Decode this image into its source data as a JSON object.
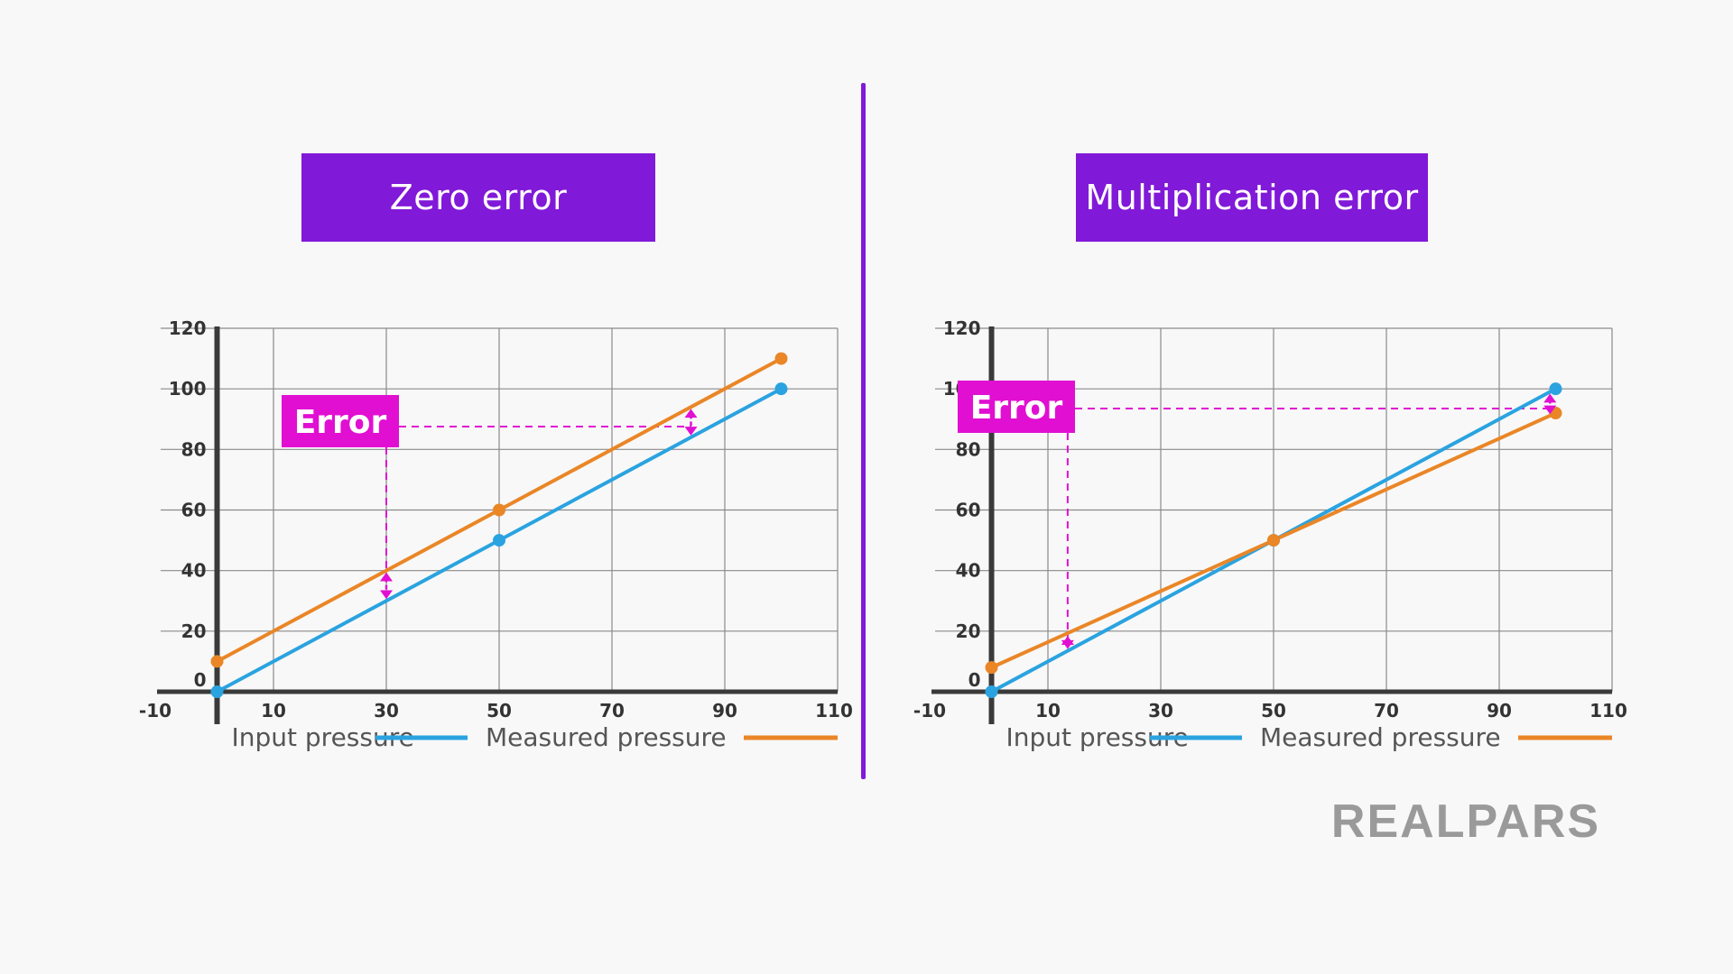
{
  "titles": {
    "left": "Zero error",
    "right": "Multiplication error"
  },
  "logo": {
    "text": "REALPARS",
    "color": "#9a9a9a"
  },
  "colors": {
    "accent": "#8119d8",
    "error_label": "#e10fd2",
    "input_line": "#2aa3e0",
    "measured_line": "#ea8626",
    "grid": "#8a8a8a",
    "axis": "#3a3a3a"
  },
  "chart_data": [
    {
      "type": "line",
      "title": "Zero error",
      "xlabel": "",
      "ylabel": "",
      "xlim": [
        -10,
        110
      ],
      "ylim": [
        0,
        120
      ],
      "x_ticks": [
        -10,
        10,
        30,
        50,
        70,
        90,
        110
      ],
      "y_ticks": [
        0,
        20,
        40,
        60,
        80,
        100,
        120
      ],
      "x_tick_labels": [
        "-10",
        "10",
        "30",
        "50",
        "70",
        "90",
        "110"
      ],
      "y_tick_labels": [
        "0",
        "20",
        "40",
        "60",
        "80",
        "100",
        "120"
      ],
      "grid": true,
      "legend": "bottom",
      "series": [
        {
          "name": "Input pressure",
          "color": "#2aa3e0",
          "points": [
            [
              0,
              0
            ],
            [
              50,
              50
            ],
            [
              100,
              100
            ]
          ]
        },
        {
          "name": "Measured pressure",
          "color": "#ea8626",
          "points": [
            [
              0,
              10
            ],
            [
              50,
              60
            ],
            [
              100,
              110
            ]
          ]
        }
      ],
      "annotation": {
        "label": "Error",
        "arrows": [
          {
            "x": 30,
            "y_from": 30,
            "y_to": 40
          },
          {
            "x": 84,
            "y_from": 84,
            "y_to": 94
          }
        ]
      }
    },
    {
      "type": "line",
      "title": "Multiplication error",
      "xlabel": "",
      "ylabel": "",
      "xlim": [
        -10,
        110
      ],
      "ylim": [
        0,
        120
      ],
      "x_ticks": [
        -10,
        10,
        30,
        50,
        70,
        90,
        110
      ],
      "y_ticks": [
        0,
        20,
        40,
        60,
        80,
        100,
        120
      ],
      "x_tick_labels": [
        "-10",
        "10",
        "30",
        "50",
        "70",
        "90",
        "110"
      ],
      "y_tick_labels": [
        "0",
        "20",
        "40",
        "60",
        "80",
        "100",
        "120"
      ],
      "grid": true,
      "legend": "bottom",
      "series": [
        {
          "name": "Input pressure",
          "color": "#2aa3e0",
          "points": [
            [
              0,
              0
            ],
            [
              50,
              50
            ],
            [
              100,
              100
            ]
          ]
        },
        {
          "name": "Measured pressure",
          "color": "#ea8626",
          "points": [
            [
              0,
              8
            ],
            [
              50,
              50
            ],
            [
              100,
              92
            ]
          ]
        }
      ],
      "annotation": {
        "label": "Error",
        "arrows": [
          {
            "x": 13.5,
            "y_from": 13.5,
            "y_to": 19
          },
          {
            "x": 99,
            "y_from": 91,
            "y_to": 99
          }
        ]
      }
    }
  ]
}
